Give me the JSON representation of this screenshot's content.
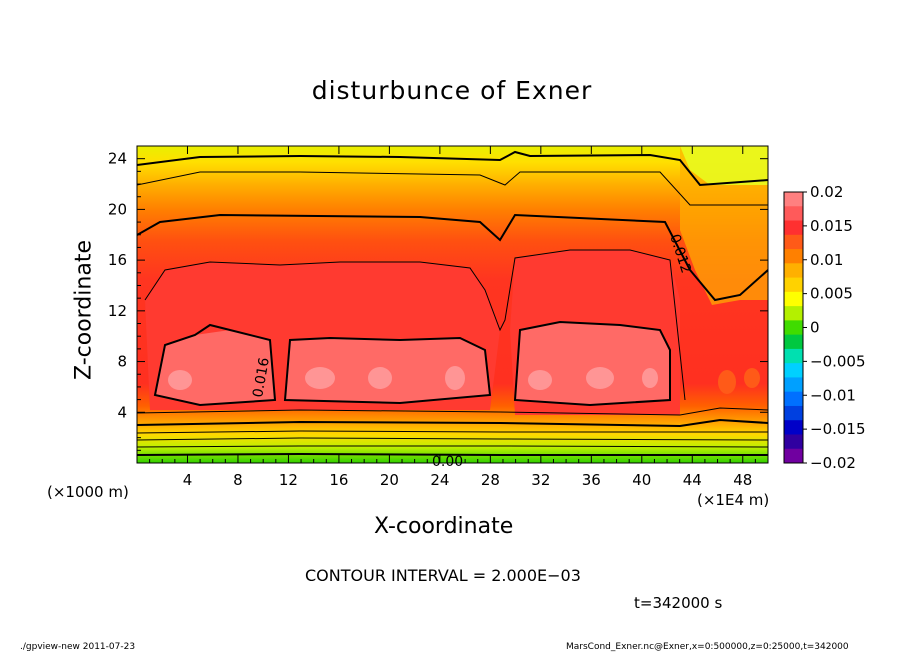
{
  "chart_data": {
    "type": "heatmap",
    "title": "disturbunce of Exner",
    "xlabel": "X-coordinate",
    "ylabel": "Z-coordinate",
    "x_unit_left": "(×1000 m)",
    "x_unit_right": "(×1E4 m)",
    "xlim": [
      0,
      50
    ],
    "ylim": [
      0,
      25
    ],
    "x_ticks": [
      4,
      8,
      12,
      16,
      20,
      24,
      28,
      32,
      36,
      40,
      44,
      48
    ],
    "y_ticks": [
      4,
      8,
      12,
      16,
      20,
      24
    ],
    "colorbar": {
      "range": [
        -0.02,
        0.02
      ],
      "tick_labels": [
        "0.02",
        "0.015",
        "0.01",
        "0.005",
        "0",
        "−0.005",
        "−0.01",
        "−0.015",
        "−0.02"
      ],
      "colors": [
        "#ff8080",
        "#ff5a5a",
        "#ff3030",
        "#ff5a18",
        "#ff8000",
        "#ffb000",
        "#ffd200",
        "#ffff00",
        "#b4f000",
        "#40dc00",
        "#00c840",
        "#00e0b0",
        "#00d0ff",
        "#00a0ff",
        "#0070ff",
        "#0040e0",
        "#0000c8",
        "#3000a0",
        "#7000a0"
      ]
    },
    "contour_labels": [
      "0.012",
      "0.016",
      "0.00"
    ],
    "contour_interval": "CONTOUR INTERVAL = 2.000E−03",
    "time": "t=342000 s"
  },
  "footer": {
    "left": "./gpview-new  2011-07-23",
    "right": "MarsCond_Exner.nc@Exner,x=0:500000,z=0:25000,t=342000"
  }
}
